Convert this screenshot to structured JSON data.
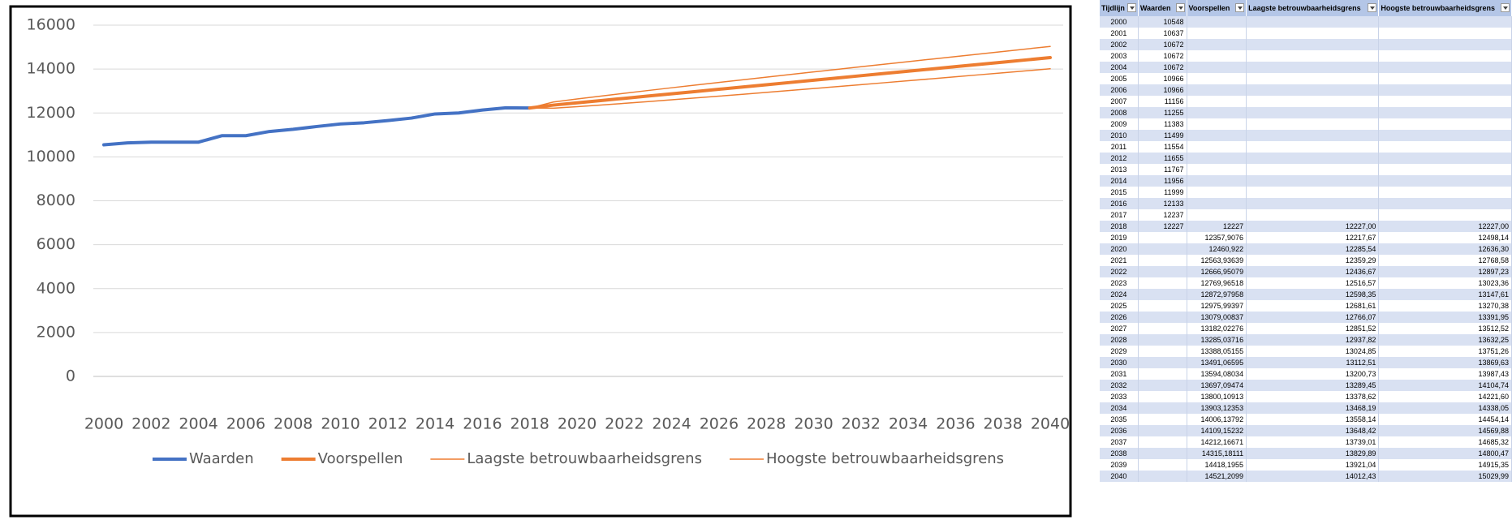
{
  "chart_data": {
    "type": "line",
    "x": [
      2000,
      2001,
      2002,
      2003,
      2004,
      2005,
      2006,
      2007,
      2008,
      2009,
      2010,
      2011,
      2012,
      2013,
      2014,
      2015,
      2016,
      2017,
      2018,
      2019,
      2020,
      2021,
      2022,
      2023,
      2024,
      2025,
      2026,
      2027,
      2028,
      2029,
      2030,
      2031,
      2032,
      2033,
      2034,
      2035,
      2036,
      2037,
      2038,
      2039,
      2040
    ],
    "xlim": [
      2000,
      2040
    ],
    "xticks": [
      2000,
      2002,
      2004,
      2006,
      2008,
      2010,
      2012,
      2014,
      2016,
      2018,
      2020,
      2022,
      2024,
      2026,
      2028,
      2030,
      2032,
      2034,
      2036,
      2038,
      2040
    ],
    "ylim": [
      0,
      16000
    ],
    "yticks": [
      0,
      2000,
      4000,
      6000,
      8000,
      10000,
      12000,
      14000,
      16000
    ],
    "grid": true,
    "legend": "bottom",
    "series": [
      {
        "name": "Waarden",
        "color": "#4472c4",
        "width": 4,
        "values": [
          10548,
          10637,
          10672,
          10672,
          10672,
          10966,
          10966,
          11156,
          11255,
          11383,
          11499,
          11554,
          11655,
          11767,
          11956,
          11999,
          12133,
          12237,
          12227,
          null,
          null,
          null,
          null,
          null,
          null,
          null,
          null,
          null,
          null,
          null,
          null,
          null,
          null,
          null,
          null,
          null,
          null,
          null,
          null,
          null,
          null
        ]
      },
      {
        "name": "Voorspellen",
        "color": "#ed7d31",
        "width": 4,
        "values": [
          null,
          null,
          null,
          null,
          null,
          null,
          null,
          null,
          null,
          null,
          null,
          null,
          null,
          null,
          null,
          null,
          null,
          null,
          12227,
          12357.9076,
          12460.922,
          12563.93639,
          12666.95079,
          12769.96518,
          12872.97958,
          12975.99397,
          13079.00837,
          13182.02276,
          13285.03716,
          13388.05155,
          13491.06595,
          13594.08034,
          13697.09474,
          13800.10913,
          13903.12353,
          14006.13792,
          14109.15232,
          14212.16671,
          14315.18111,
          14418.1955,
          14521.2099
        ]
      },
      {
        "name": "Laagste betrouwbaarheidsgrens",
        "color": "#ed7d31",
        "width": 1.5,
        "values": [
          null,
          null,
          null,
          null,
          null,
          null,
          null,
          null,
          null,
          null,
          null,
          null,
          null,
          null,
          null,
          null,
          null,
          null,
          12227,
          12217.67,
          12285.54,
          12359.29,
          12436.67,
          12516.57,
          12598.35,
          12681.61,
          12766.07,
          12851.52,
          12937.82,
          13024.85,
          13112.51,
          13200.73,
          13289.45,
          13378.62,
          13468.19,
          13558.14,
          13648.42,
          13739.01,
          13829.89,
          13921.04,
          14012.43
        ]
      },
      {
        "name": "Hoogste betrouwbaarheidsgrens",
        "color": "#ed7d31",
        "width": 1.5,
        "values": [
          null,
          null,
          null,
          null,
          null,
          null,
          null,
          null,
          null,
          null,
          null,
          null,
          null,
          null,
          null,
          null,
          null,
          null,
          12227,
          12498.14,
          12636.3,
          12768.58,
          12897.23,
          13023.36,
          13147.61,
          13270.38,
          13391.95,
          13512.52,
          13632.25,
          13751.26,
          13869.63,
          13987.43,
          14104.74,
          14221.6,
          14338.05,
          14454.14,
          14569.88,
          14685.32,
          14800.47,
          14915.35,
          15029.99
        ]
      }
    ]
  },
  "table": {
    "columns": [
      "Tijdlijn",
      "Waarden",
      "Voorspellen",
      "Laagste betrouwbaarheidsgrens",
      "Hoogste betrouwbaarheidsgrens"
    ],
    "rows": [
      [
        "2000",
        "10548"
      ],
      [
        "2001",
        "10637"
      ],
      [
        "2002",
        "10672"
      ],
      [
        "2003",
        "10672"
      ],
      [
        "2004",
        "10672"
      ],
      [
        "2005",
        "10966"
      ],
      [
        "2006",
        "10966"
      ],
      [
        "2007",
        "11156"
      ],
      [
        "2008",
        "11255"
      ],
      [
        "2009",
        "11383"
      ],
      [
        "2010",
        "11499"
      ],
      [
        "2011",
        "11554"
      ],
      [
        "2012",
        "11655"
      ],
      [
        "2013",
        "11767"
      ],
      [
        "2014",
        "11956"
      ],
      [
        "2015",
        "11999"
      ],
      [
        "2016",
        "12133"
      ],
      [
        "2017",
        "12237"
      ],
      [
        "2018",
        "12227",
        "12227",
        "12227,00",
        "12227,00"
      ],
      [
        "2019",
        null,
        "12357,9076",
        "12217,67",
        "12498,14"
      ],
      [
        "2020",
        null,
        "12460,922",
        "12285,54",
        "12636,30"
      ],
      [
        "2021",
        null,
        "12563,93639",
        "12359,29",
        "12768,58"
      ],
      [
        "2022",
        null,
        "12666,95079",
        "12436,67",
        "12897,23"
      ],
      [
        "2023",
        null,
        "12769,96518",
        "12516,57",
        "13023,36"
      ],
      [
        "2024",
        null,
        "12872,97958",
        "12598,35",
        "13147,61"
      ],
      [
        "2025",
        null,
        "12975,99397",
        "12681,61",
        "13270,38"
      ],
      [
        "2026",
        null,
        "13079,00837",
        "12766,07",
        "13391,95"
      ],
      [
        "2027",
        null,
        "13182,02276",
        "12851,52",
        "13512,52"
      ],
      [
        "2028",
        null,
        "13285,03716",
        "12937,82",
        "13632,25"
      ],
      [
        "2029",
        null,
        "13388,05155",
        "13024,85",
        "13751,26"
      ],
      [
        "2030",
        null,
        "13491,06595",
        "13112,51",
        "13869,63"
      ],
      [
        "2031",
        null,
        "13594,08034",
        "13200,73",
        "13987,43"
      ],
      [
        "2032",
        null,
        "13697,09474",
        "13289,45",
        "14104,74"
      ],
      [
        "2033",
        null,
        "13800,10913",
        "13378,62",
        "14221,60"
      ],
      [
        "2034",
        null,
        "13903,12353",
        "13468,19",
        "14338,05"
      ],
      [
        "2035",
        null,
        "14006,13792",
        "13558,14",
        "14454,14"
      ],
      [
        "2036",
        null,
        "14109,15232",
        "13648,42",
        "14569,88"
      ],
      [
        "2037",
        null,
        "14212,16671",
        "13739,01",
        "14685,32"
      ],
      [
        "2038",
        null,
        "14315,18111",
        "13829,89",
        "14800,47"
      ],
      [
        "2039",
        null,
        "14418,1955",
        "13921,04",
        "14915,35"
      ],
      [
        "2040",
        null,
        "14521,2099",
        "14012,43",
        "15029,99"
      ]
    ]
  }
}
